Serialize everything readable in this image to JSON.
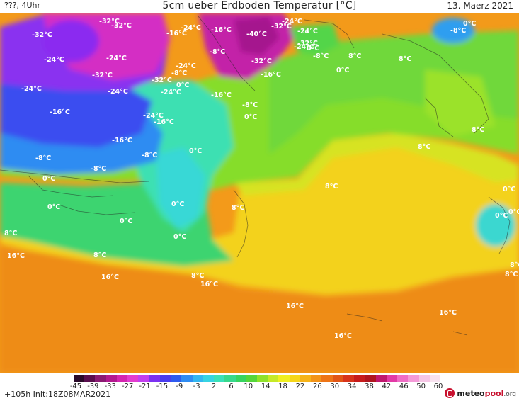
{
  "header": {
    "left_text": "???, 4Uhr",
    "title": "5cm ueber Erdboden Temperatur [°C]",
    "date": "13. Maerz 2021"
  },
  "footer": {
    "init_text": "+105h  Init:18Z08MAR2021",
    "logo": {
      "main": "meteo",
      "accent": "pool",
      "tld": ".org"
    }
  },
  "legend": {
    "tick_labels": [
      "-45",
      "-39",
      "-33",
      "-27",
      "-21",
      "-15",
      "-9",
      "-3",
      "2",
      "6",
      "10",
      "14",
      "18",
      "22",
      "26",
      "30",
      "34",
      "38",
      "42",
      "46",
      "50",
      "60"
    ],
    "colors": [
      "#2a0a2a",
      "#5a0e4e",
      "#8b1a73",
      "#b3198f",
      "#d426b0",
      "#e33ccf",
      "#c23ef0",
      "#7b31f2",
      "#4a3df0",
      "#2e5bf0",
      "#2f8cf2",
      "#33b7f0",
      "#37d4e2",
      "#3be0b9",
      "#37d98c",
      "#37d460",
      "#54d63a",
      "#8ee22a",
      "#c6ea27",
      "#f0f020",
      "#f6d619",
      "#f6b319",
      "#f39419",
      "#ee7517",
      "#e25616",
      "#d8341b",
      "#c71c1c",
      "#b0151f",
      "#c0186e",
      "#e23aa6",
      "#f06cc6",
      "#f49ad8",
      "#f6c6e6",
      "#f9e2f0"
    ]
  },
  "map_labels": [
    "-32°C",
    "-32°C",
    "-24°C",
    "-16°C",
    "-32°C",
    "-16°C",
    "-24°C",
    "-32°C",
    "-24°C",
    "-40°C",
    "-32°C",
    "-24°C",
    "0°C",
    "-8°C",
    "-24°C",
    "-24°C",
    "-8°C",
    "0°C",
    "-8°C",
    "8°C",
    "-32°C",
    "-24°C",
    "-8°C",
    "-32°C",
    "-16°C",
    "-32°C",
    "0°C",
    "-24°C",
    "-16°C",
    "-24°C",
    "-24°C",
    "0°C",
    "-8°C",
    "8°C",
    "-16°C",
    "-24°C",
    "-16°C",
    "0°C",
    "8°C",
    "-16°C",
    "0°C",
    "8°C",
    "-8°C",
    "-8°C",
    "0°C",
    "8°C",
    "-8°C",
    "0°C",
    "8°C",
    "0°C",
    "0°C",
    "0°C",
    "8°C",
    "0°C",
    "0°C",
    "0°C",
    "8°C",
    "16°C",
    "8°C",
    "16°C",
    "8°C",
    "16°C",
    "8°C",
    "16°C",
    "16°C",
    "16°C"
  ]
}
